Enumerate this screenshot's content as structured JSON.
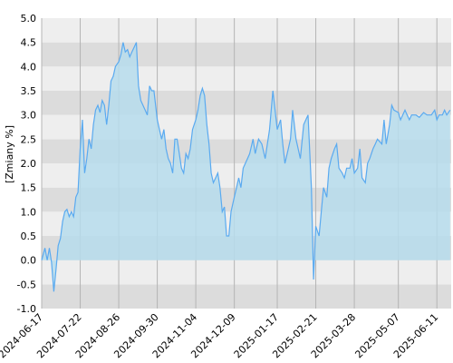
{
  "chart_data": {
    "type": "area",
    "ylabel": "[Zmiany %]",
    "ylim": [
      -1.0,
      5.0
    ],
    "yticks": [
      "-1.0",
      "-0.5",
      "0.0",
      "0.5",
      "1.0",
      "1.5",
      "2.0",
      "2.5",
      "3.0",
      "3.5",
      "4.0",
      "4.5",
      "5.0"
    ],
    "xlim": [
      "2024-06-17",
      "2025-06-24"
    ],
    "xticks": [
      "2024-06-17",
      "2024-07-22",
      "2024-08-26",
      "2024-09-30",
      "2024-11-04",
      "2024-12-09",
      "2025-01-17",
      "2025-02-21",
      "2025-03-28",
      "2025-05-07",
      "2025-06-11"
    ],
    "grid": true,
    "colors": {
      "line": "#5aaaf0",
      "fill": "#b6dcec",
      "band_dark": "#dcdcdc",
      "band_light": "#eeeeee",
      "vgrid": "#b4b4b4"
    },
    "series": [
      {
        "x": [
          "2024-06-17",
          "2024-06-20",
          "2024-06-22",
          "2024-06-24",
          "2024-06-26",
          "2024-06-28",
          "2024-06-30",
          "2024-07-02",
          "2024-07-04",
          "2024-07-06",
          "2024-07-08",
          "2024-07-10",
          "2024-07-12",
          "2024-07-14",
          "2024-07-16",
          "2024-07-18",
          "2024-07-20",
          "2024-07-22",
          "2024-07-24",
          "2024-07-26",
          "2024-07-28",
          "2024-07-30",
          "2024-08-01",
          "2024-08-03",
          "2024-08-05",
          "2024-08-07",
          "2024-08-09",
          "2024-08-11",
          "2024-08-13",
          "2024-08-15",
          "2024-08-17",
          "2024-08-19",
          "2024-08-21",
          "2024-08-23",
          "2024-08-26",
          "2024-08-28",
          "2024-08-30",
          "2024-09-01",
          "2024-09-03",
          "2024-09-05",
          "2024-09-07",
          "2024-09-09",
          "2024-09-11",
          "2024-09-13",
          "2024-09-15",
          "2024-09-17",
          "2024-09-19",
          "2024-09-21",
          "2024-09-23",
          "2024-09-25",
          "2024-09-27",
          "2024-09-30",
          "2024-10-02",
          "2024-10-04",
          "2024-10-06",
          "2024-10-08",
          "2024-10-10",
          "2024-10-12",
          "2024-10-14",
          "2024-10-16",
          "2024-10-18",
          "2024-10-20",
          "2024-10-22",
          "2024-10-24",
          "2024-10-26",
          "2024-10-28",
          "2024-10-30",
          "2024-11-01",
          "2024-11-04",
          "2024-11-06",
          "2024-11-08",
          "2024-11-10",
          "2024-11-12",
          "2024-11-14",
          "2024-11-16",
          "2024-11-18",
          "2024-11-20",
          "2024-11-22",
          "2024-11-24",
          "2024-11-26",
          "2024-11-28",
          "2024-11-30",
          "2024-12-02",
          "2024-12-04",
          "2024-12-06",
          "2024-12-09",
          "2024-12-11",
          "2024-12-13",
          "2024-12-15",
          "2024-12-17",
          "2024-12-19",
          "2024-12-21",
          "2024-12-23",
          "2024-12-26",
          "2024-12-28",
          "2024-12-31",
          "2025-01-03",
          "2025-01-06",
          "2025-01-08",
          "2025-01-10",
          "2025-01-13",
          "2025-01-15",
          "2025-01-17",
          "2025-01-20",
          "2025-01-22",
          "2025-01-24",
          "2025-01-27",
          "2025-01-29",
          "2025-01-31",
          "2025-02-03",
          "2025-02-05",
          "2025-02-07",
          "2025-02-10",
          "2025-02-12",
          "2025-02-14",
          "2025-02-17",
          "2025-02-19",
          "2025-02-21",
          "2025-02-24",
          "2025-02-26",
          "2025-02-28",
          "2025-03-03",
          "2025-03-05",
          "2025-03-07",
          "2025-03-10",
          "2025-03-12",
          "2025-03-14",
          "2025-03-17",
          "2025-03-19",
          "2025-03-21",
          "2025-03-24",
          "2025-03-26",
          "2025-03-28",
          "2025-03-31",
          "2025-04-02",
          "2025-04-04",
          "2025-04-07",
          "2025-04-09",
          "2025-04-11",
          "2025-04-14",
          "2025-04-16",
          "2025-04-18",
          "2025-04-22",
          "2025-04-24",
          "2025-04-26",
          "2025-04-29",
          "2025-05-01",
          "2025-05-03",
          "2025-05-07",
          "2025-05-09",
          "2025-05-11",
          "2025-05-13",
          "2025-05-15",
          "2025-05-17",
          "2025-05-19",
          "2025-05-21",
          "2025-05-23",
          "2025-05-26",
          "2025-05-28",
          "2025-05-30",
          "2025-06-02",
          "2025-06-04",
          "2025-06-06",
          "2025-06-09",
          "2025-06-11",
          "2025-06-13",
          "2025-06-16",
          "2025-06-18",
          "2025-06-20",
          "2025-06-23"
        ],
        "values": [
          0.0,
          0.25,
          0.0,
          0.25,
          -0.05,
          -0.65,
          -0.2,
          0.3,
          0.45,
          0.8,
          1.0,
          1.05,
          0.9,
          1.0,
          0.9,
          1.3,
          1.4,
          2.3,
          2.9,
          1.8,
          2.1,
          2.5,
          2.3,
          2.8,
          3.1,
          3.2,
          3.05,
          3.3,
          3.2,
          2.8,
          3.2,
          3.7,
          3.8,
          4.0,
          4.1,
          4.25,
          4.5,
          4.3,
          4.35,
          4.2,
          4.3,
          4.4,
          4.5,
          3.6,
          3.3,
          3.2,
          3.1,
          3.0,
          3.6,
          3.5,
          3.5,
          2.9,
          2.7,
          2.5,
          2.7,
          2.3,
          2.1,
          2.0,
          1.8,
          2.5,
          2.5,
          2.2,
          1.9,
          1.8,
          2.2,
          2.1,
          2.3,
          2.7,
          2.9,
          3.1,
          3.4,
          3.55,
          3.4,
          2.8,
          2.4,
          1.8,
          1.6,
          1.7,
          1.8,
          1.5,
          1.0,
          1.1,
          0.5,
          0.5,
          1.0,
          1.3,
          1.5,
          1.7,
          1.5,
          1.9,
          2.0,
          2.1,
          2.2,
          2.5,
          2.2,
          2.5,
          2.4,
          2.1,
          2.4,
          2.7,
          3.5,
          3.1,
          2.7,
          2.9,
          2.4,
          2.0,
          2.3,
          2.5,
          3.1,
          2.5,
          2.3,
          2.1,
          2.8,
          2.9,
          3.0,
          1.5,
          -0.4,
          0.7,
          0.5,
          1.0,
          1.5,
          1.3,
          1.9,
          2.1,
          2.3,
          2.4,
          1.9,
          1.8,
          1.7,
          1.9,
          1.9,
          2.1,
          1.8,
          1.9,
          2.3,
          1.7,
          1.6,
          2.0,
          2.1,
          2.3,
          2.4,
          2.5,
          2.4,
          2.9,
          2.4,
          2.8,
          3.2,
          3.1,
          3.05,
          2.9,
          3.0,
          3.1,
          3.0,
          2.9,
          3.0,
          3.0,
          3.0,
          2.95,
          3.0,
          3.05,
          3.0,
          3.0,
          3.0,
          3.1,
          2.9,
          3.0,
          3.0,
          3.1,
          3.0,
          3.1
        ]
      }
    ]
  }
}
